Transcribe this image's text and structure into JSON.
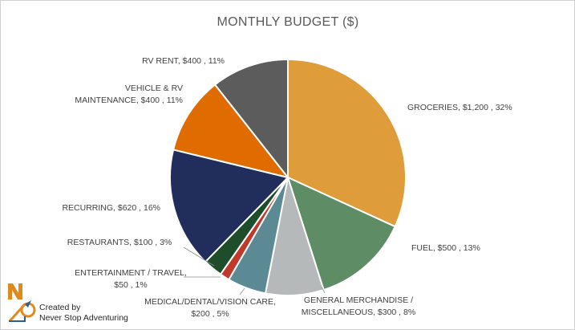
{
  "chart_data": {
    "type": "pie",
    "title": "MONTHLY BUDGET ($)",
    "slices": [
      {
        "label": "GROCERIES",
        "value": 1200,
        "percent": "32%",
        "text": [
          "GROCERIES, $1,200 , 32%"
        ],
        "color": "#DE9C3A"
      },
      {
        "label": "FUEL",
        "value": 500,
        "percent": "13%",
        "text": [
          "FUEL, $500 , 13%"
        ],
        "color": "#5E8C64"
      },
      {
        "label": "GENERAL MERCHANDISE / MISCELLANEOUS",
        "value": 300,
        "percent": "8%",
        "text": [
          "GENERAL MERCHANDISE /",
          "MISCELLANEOUS, $300 , 8%"
        ],
        "color": "#B5B9BA"
      },
      {
        "label": "MEDICAL/DENTAL/VISION CARE",
        "value": 200,
        "percent": "5%",
        "text": [
          "MEDICAL/DENTAL/VISION CARE,",
          "$200 , 5%"
        ],
        "color": "#5C8A94"
      },
      {
        "label": "ENTERTAINMENT / TRAVEL",
        "value": 50,
        "percent": "1%",
        "text": [
          "ENTERTAINMENT / TRAVEL,",
          "$50 , 1%"
        ],
        "color": "#C0392B"
      },
      {
        "label": "RESTAURANTS",
        "value": 100,
        "percent": "3%",
        "text": [
          "RESTAURANTS, $100 , 3%"
        ],
        "color": "#1E4D2B"
      },
      {
        "label": "RECURRING",
        "value": 620,
        "percent": "16%",
        "text": [
          "RECURRING, $620 , 16%"
        ],
        "color": "#212D5A"
      },
      {
        "label": "VEHICLE & RV MAINTENANCE",
        "value": 400,
        "percent": "11%",
        "text": [
          "VEHICLE & RV",
          "MAINTENANCE, $400 , 11%"
        ],
        "color": "#E06C00"
      },
      {
        "label": "RV RENT",
        "value": 400,
        "percent": "11%",
        "text": [
          "RV RENT, $400 , 11%"
        ],
        "color": "#5C5C5C"
      }
    ]
  },
  "credit": {
    "line1": "Created by",
    "line2": "Never Stop Adventuring",
    "logo_text": "NSA"
  }
}
